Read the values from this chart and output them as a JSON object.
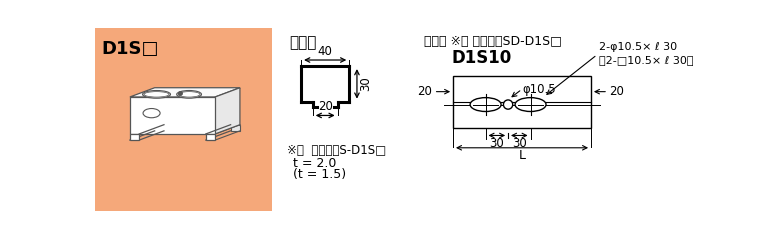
{
  "bg_color_left": "#F5A87A",
  "left_label": "D1S□",
  "section_title": "断面図",
  "dim_title": "寸法図 ※（ ）寸法はSD-D1S□",
  "d1s10_label": "D1S10",
  "note1": "※（  ）寸法はS-D1S□",
  "t_line1": "t = 2.0",
  "t_line2": "(t = 1.5)",
  "dim_40": "40",
  "dim_30_vert": "30",
  "dim_20_bottom": "20",
  "hole_label1": "φ10.5",
  "hole_label2": "2-φ10.5× ℓ 30",
  "hole_label3": "〈2-□10.5× ℓ 30〉",
  "dim_20_left": "20",
  "dim_30a": "30",
  "dim_30b": "30",
  "dim_20_right": "20",
  "dim_L": "L"
}
